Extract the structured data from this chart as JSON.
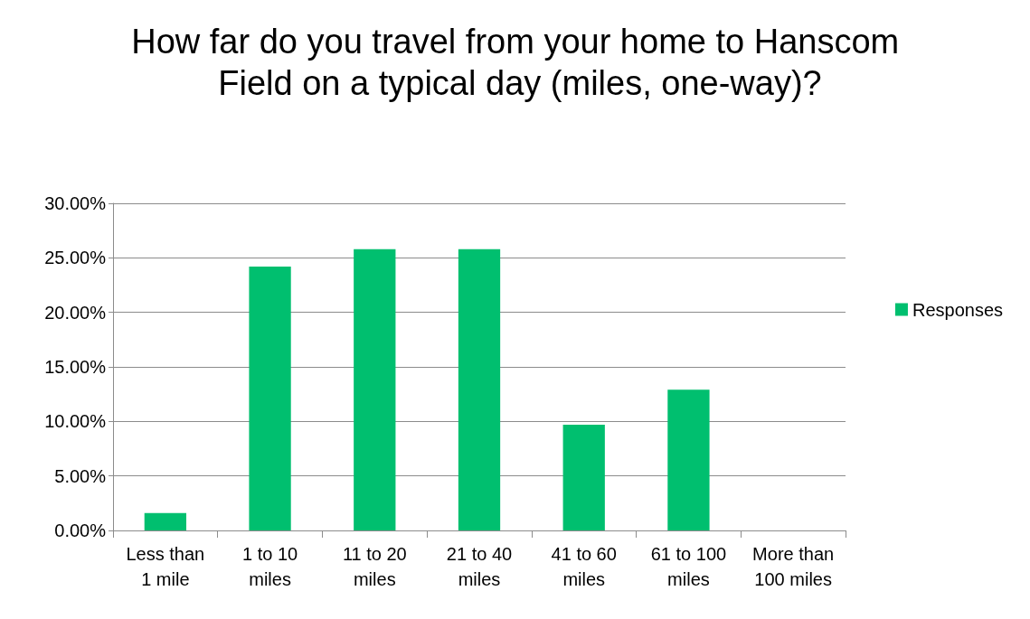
{
  "chart_data": {
    "type": "bar",
    "title": "How far do you travel from your home to Hanscom Field on a typical day (miles, one-way)?",
    "categories": [
      "Less than\n1 mile",
      "1 to 10\nmiles",
      "11 to 20\nmiles",
      "21 to 40\nmiles",
      "41 to 60\nmiles",
      "61 to 100\nmiles",
      "More than\n100 miles"
    ],
    "series": [
      {
        "name": "Responses",
        "color": "#00bf6f",
        "values": [
          1.6,
          24.2,
          25.8,
          25.8,
          9.7,
          12.9,
          0
        ]
      }
    ],
    "ylim": [
      0,
      30
    ],
    "yticks": [
      {
        "value": 0,
        "label": "0.00%"
      },
      {
        "value": 5,
        "label": "5.00%"
      },
      {
        "value": 10,
        "label": "10.00%"
      },
      {
        "value": 15,
        "label": "15.00%"
      },
      {
        "value": 20,
        "label": "20.00%"
      },
      {
        "value": 25,
        "label": "25.00%"
      },
      {
        "value": 30,
        "label": "30.00%"
      }
    ],
    "grid": "y",
    "legend": "right"
  }
}
